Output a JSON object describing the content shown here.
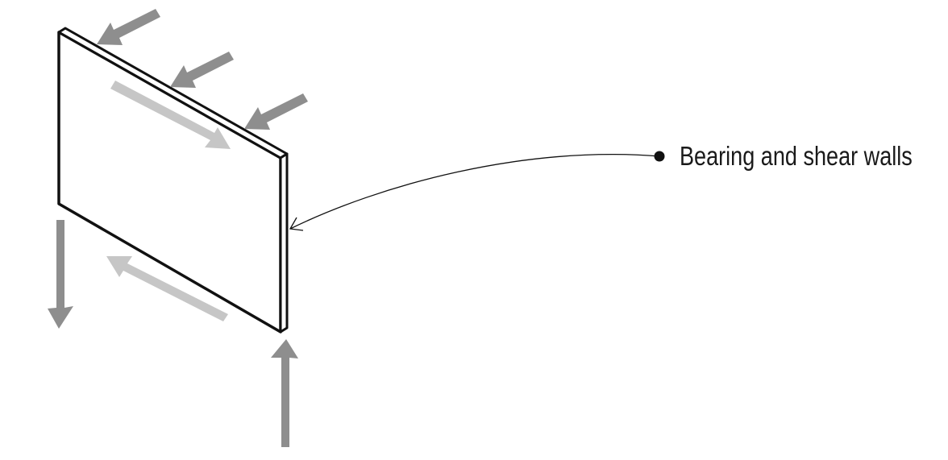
{
  "diagram": {
    "callout": {
      "label": "Bearing and shear walls"
    },
    "colors": {
      "background": "#ffffff",
      "outline": "#111111",
      "arrow_dark": "#8e8e8e",
      "arrow_light": "#c6c6c6"
    }
  }
}
